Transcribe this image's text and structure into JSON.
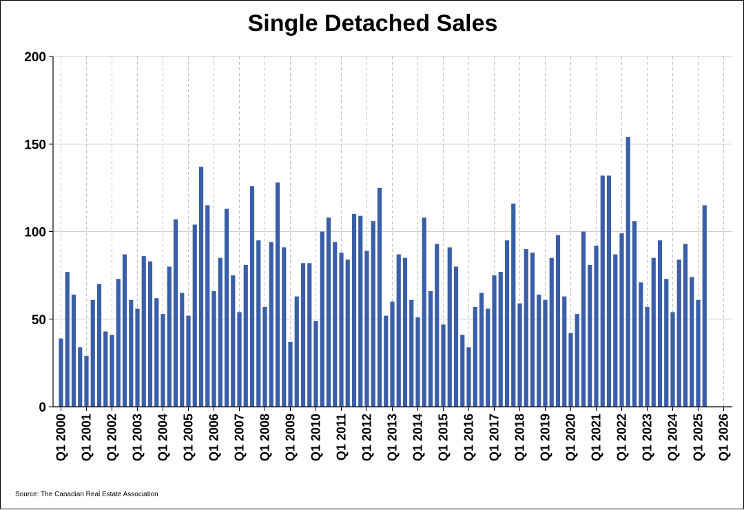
{
  "chart_data": {
    "type": "bar",
    "title": "Single Detached Sales",
    "source": "Source: The Canadian Real Estate Association",
    "xlabel": "",
    "ylabel": "",
    "ylim": [
      0,
      200
    ],
    "yticks": [
      0,
      50,
      100,
      150,
      200
    ],
    "xtick_labels": [
      "Q1 2000",
      "Q1 2001",
      "Q1 2002",
      "Q1 2003",
      "Q1 2004",
      "Q1 2005",
      "Q1 2006",
      "Q1 2007",
      "Q1 2008",
      "Q1 2009",
      "Q1 2010",
      "Q1 2011",
      "Q1 2012",
      "Q1 2013",
      "Q1 2014",
      "Q1 2015",
      "Q1 2016",
      "Q1 2017",
      "Q1 2018",
      "Q1 2019",
      "Q1 2020",
      "Q1 2021",
      "Q1 2022",
      "Q1 2023",
      "Q1 2024",
      "Q1 2025",
      "Q1 2026"
    ],
    "grid": "horizontal solid, vertical dashed",
    "bar_color": "#3A5FA8",
    "categories": [
      "Q1 2000",
      "Q2 2000",
      "Q3 2000",
      "Q4 2000",
      "Q1 2001",
      "Q2 2001",
      "Q3 2001",
      "Q4 2001",
      "Q1 2002",
      "Q2 2002",
      "Q3 2002",
      "Q4 2002",
      "Q1 2003",
      "Q2 2003",
      "Q3 2003",
      "Q4 2003",
      "Q1 2004",
      "Q2 2004",
      "Q3 2004",
      "Q4 2004",
      "Q1 2005",
      "Q2 2005",
      "Q3 2005",
      "Q4 2005",
      "Q1 2006",
      "Q2 2006",
      "Q3 2006",
      "Q4 2006",
      "Q1 2007",
      "Q2 2007",
      "Q3 2007",
      "Q4 2007",
      "Q1 2008",
      "Q2 2008",
      "Q3 2008",
      "Q4 2008",
      "Q1 2009",
      "Q2 2009",
      "Q3 2009",
      "Q4 2009",
      "Q1 2010",
      "Q2 2010",
      "Q3 2010",
      "Q4 2010",
      "Q1 2011",
      "Q2 2011",
      "Q3 2011",
      "Q4 2011",
      "Q1 2012",
      "Q2 2012",
      "Q3 2012",
      "Q4 2012",
      "Q1 2013",
      "Q2 2013",
      "Q3 2013",
      "Q4 2013",
      "Q1 2014",
      "Q2 2014",
      "Q3 2014",
      "Q4 2014",
      "Q1 2015",
      "Q2 2015",
      "Q3 2015",
      "Q4 2015",
      "Q1 2016",
      "Q2 2016",
      "Q3 2016",
      "Q4 2016",
      "Q1 2017",
      "Q2 2017",
      "Q3 2017",
      "Q4 2017",
      "Q1 2018",
      "Q2 2018",
      "Q3 2018",
      "Q4 2018",
      "Q1 2019",
      "Q2 2019",
      "Q3 2019",
      "Q4 2019",
      "Q1 2020",
      "Q2 2020",
      "Q3 2020",
      "Q4 2020",
      "Q1 2021",
      "Q2 2021",
      "Q3 2021",
      "Q4 2021",
      "Q1 2022",
      "Q2 2022",
      "Q3 2022",
      "Q4 2022",
      "Q1 2023",
      "Q2 2023",
      "Q3 2023",
      "Q4 2023",
      "Q1 2024",
      "Q2 2024",
      "Q3 2024",
      "Q4 2024",
      "Q1 2025",
      "Q2 2025"
    ],
    "values": [
      39,
      77,
      64,
      34,
      29,
      61,
      70,
      43,
      41,
      73,
      87,
      61,
      56,
      86,
      83,
      62,
      53,
      80,
      107,
      65,
      52,
      104,
      137,
      115,
      66,
      85,
      113,
      75,
      54,
      81,
      126,
      95,
      57,
      94,
      128,
      91,
      37,
      63,
      82,
      82,
      49,
      100,
      108,
      94,
      88,
      84,
      110,
      109,
      89,
      106,
      125,
      52,
      60,
      87,
      85,
      61,
      51,
      108,
      66,
      93,
      47,
      91,
      80,
      41,
      34,
      57,
      65,
      56,
      75,
      77,
      95,
      116,
      59,
      90,
      88,
      64,
      61,
      85,
      98,
      63,
      42,
      53,
      100,
      81,
      92,
      132,
      132,
      87,
      99,
      154,
      106,
      71,
      57,
      85,
      95,
      73,
      54,
      84,
      93,
      74,
      61,
      115
    ]
  }
}
